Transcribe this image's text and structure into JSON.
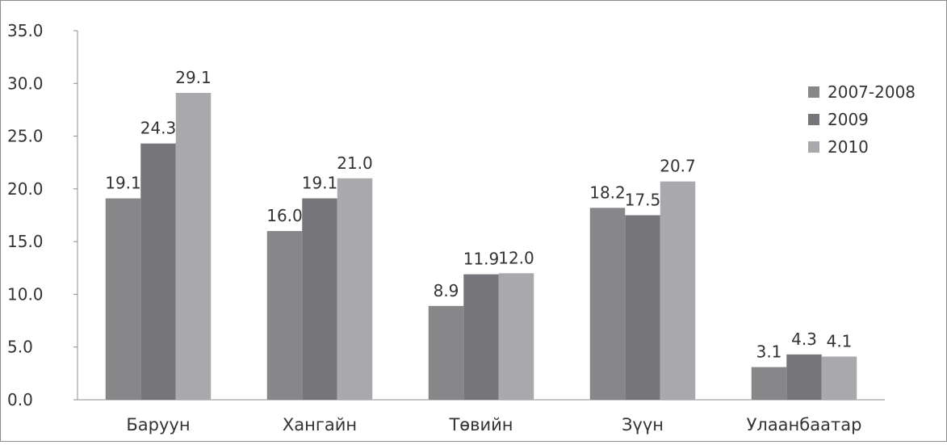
{
  "chart_data": {
    "type": "bar",
    "title": "",
    "xlabel": "",
    "ylabel": "",
    "categories": [
      "Баруун",
      "Хангайн",
      "Төвийн",
      "Зүүн",
      "Улаанбаатар"
    ],
    "series": [
      {
        "name": "2007-2008",
        "values": [
          19.1,
          16.0,
          8.9,
          18.2,
          3.1
        ],
        "color": "#87878a"
      },
      {
        "name": "2009",
        "values": [
          24.3,
          19.1,
          11.9,
          17.5,
          4.3
        ],
        "color": "#76767a"
      },
      {
        "name": "2010",
        "values": [
          29.1,
          21.0,
          12.0,
          20.7,
          4.1
        ],
        "color": "#a9a9ad"
      }
    ],
    "ylim": [
      0,
      35
    ],
    "yticks": [
      "0.0",
      "5.0",
      "10.0",
      "15.0",
      "20.0",
      "25.0",
      "30.0",
      "35.0"
    ],
    "data_labels": [
      [
        "19.1",
        "16.0",
        "8.9",
        "18.2",
        "3.1"
      ],
      [
        "24.3",
        "19.1",
        "11.9",
        "17.5",
        "4.3"
      ],
      [
        "29.1",
        "21.0",
        "12.0",
        "20.7",
        "4.1"
      ]
    ],
    "grid": false,
    "legend_position": "right"
  }
}
